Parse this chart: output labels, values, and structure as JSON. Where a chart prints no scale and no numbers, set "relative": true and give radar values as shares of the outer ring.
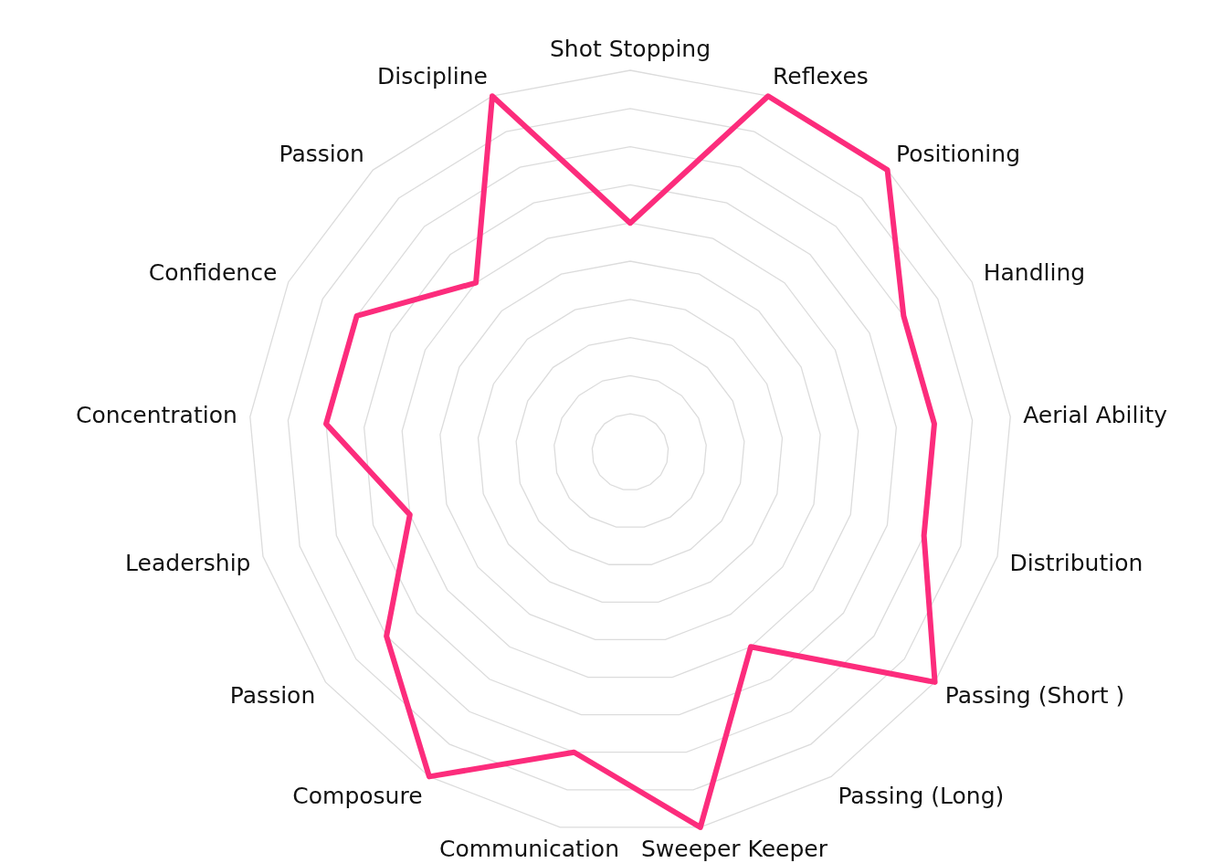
{
  "chart_data": {
    "type": "radar",
    "relative": true,
    "grid": true,
    "marker": "none",
    "line_style": "solid",
    "categories": [
      "Shot Stopping",
      "Reflexes",
      "Positioning",
      "Handling",
      "Aerial Ability",
      "Distribution",
      "Passing (Short )",
      "Passing (Long)",
      "Sweeper Keeper",
      "Communication",
      "Composure",
      "Passion",
      "Leadership",
      "Concentration",
      "Confidence",
      "Passion",
      "Discipline"
    ],
    "series": [
      {
        "color": "#fc2c7c",
        "values": [
          0.6,
          1,
          1,
          0.8,
          0.8,
          0.8,
          1,
          0.6,
          1,
          0.8,
          1,
          0.8,
          0.6,
          0.8,
          0.8,
          0.6,
          1
        ]
      }
    ]
  }
}
